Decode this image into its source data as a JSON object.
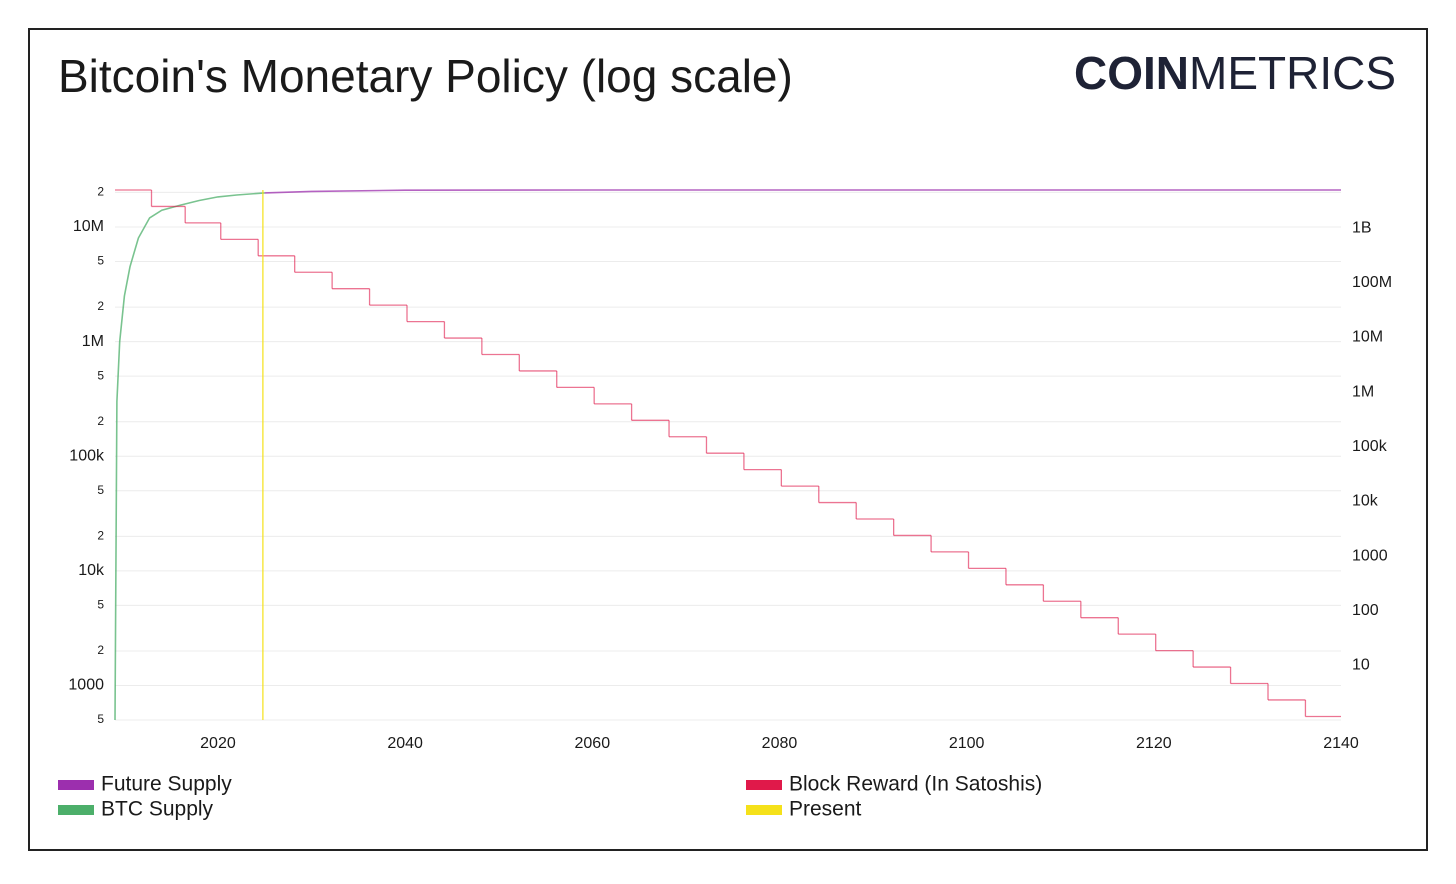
{
  "chart_data": {
    "type": "line",
    "title": "Bitcoin's Monetary Policy (log scale)",
    "brand": {
      "bold": "COIN",
      "light": "METRICS"
    },
    "xlim": [
      2009,
      2140
    ],
    "xticks": [
      2020,
      2040,
      2060,
      2080,
      2100,
      2120,
      2140
    ],
    "ylim": [
      500,
      21000000
    ],
    "log_y": true,
    "grid": true,
    "yticks": [
      {
        "value": 500,
        "label": "5"
      },
      1000,
      {
        "value": 2000,
        "label": "2"
      },
      {
        "value": 5000,
        "label": "5"
      },
      {
        "value": 10000,
        "label": "10k"
      },
      {
        "value": 20000,
        "label": "2"
      },
      {
        "value": 50000,
        "label": "5"
      },
      {
        "value": 100000,
        "label": "100k"
      },
      {
        "value": 200000,
        "label": "2"
      },
      {
        "value": 500000,
        "label": "5"
      },
      {
        "value": 1000000,
        "label": "1M"
      },
      {
        "value": 2000000,
        "label": "2"
      },
      {
        "value": 5000000,
        "label": "5"
      },
      {
        "value": 10000000,
        "label": "10M"
      },
      {
        "value": 20000000,
        "label": "2"
      }
    ],
    "y2lim": [
      1,
      5000000000
    ],
    "log_y2": true,
    "y2ticks": [
      10,
      100,
      1000,
      {
        "value": 10000,
        "label": "10k"
      },
      {
        "value": 100000,
        "label": "100k"
      },
      {
        "value": 1000000,
        "label": "1M"
      },
      {
        "value": 10000000,
        "label": "10M"
      },
      {
        "value": 100000000,
        "label": "100M"
      },
      {
        "value": 1000000000,
        "label": "1B"
      }
    ],
    "series": [
      {
        "name": "Future Supply",
        "color": "#9c2fae",
        "axis": "y",
        "x": [
          2025,
          2030,
          2040,
          2060,
          2140
        ],
        "values": [
          19800000,
          20400000,
          20900000,
          21000000,
          21000000
        ]
      },
      {
        "name": "BTC Supply",
        "color": "#4caf6a",
        "axis": "y",
        "x": [
          2009,
          2009.2,
          2009.5,
          2010,
          2010.6,
          2011.5,
          2012.7,
          2014,
          2016,
          2018,
          2020,
          2022,
          2025
        ],
        "values": [
          500,
          300000,
          1000000,
          2500000,
          4500000,
          8000000,
          12000000,
          14000000,
          15500000,
          17000000,
          18300000,
          19000000,
          19800000
        ]
      },
      {
        "name": "Block Reward (In Satoshis)",
        "color": "#e0194a",
        "axis": "y2",
        "step": "after",
        "x": [
          2009,
          2012.9,
          2016.5,
          2020.3,
          2024.3,
          2028.2,
          2032.2,
          2036.2,
          2040.2,
          2044.2,
          2048.2,
          2052.2,
          2056.2,
          2060.2,
          2064.2,
          2068.2,
          2072.2,
          2076.2,
          2080.2,
          2084.2,
          2088.2,
          2092.2,
          2096.2,
          2100.2,
          2104.2,
          2108.2,
          2112.2,
          2116.2,
          2120.2,
          2124.2,
          2128.2,
          2132.2,
          2136.2
        ],
        "values": [
          5000000000,
          2500000000,
          1250000000,
          625000000,
          312500000,
          156250000,
          78125000,
          39062500,
          19531250,
          9765625,
          4882813,
          2441406,
          1220703,
          610352,
          305176,
          152588,
          76294,
          38147,
          19073,
          9537,
          4768,
          2384,
          1192,
          596,
          298,
          149,
          74.5,
          37.3,
          18.6,
          9.31,
          4.66,
          2.33,
          1.16
        ]
      },
      {
        "name": "Present",
        "color": "#f5e11a",
        "vertical": true,
        "x": [
          2024.8
        ]
      }
    ]
  }
}
